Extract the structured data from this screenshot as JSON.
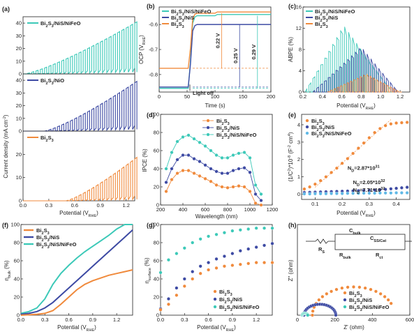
{
  "colors": {
    "orange": "#f08a3c",
    "blue": "#3d4aa3",
    "teal": "#3cc9b8",
    "lightblue": "#5fb8e6"
  },
  "chart_data": [
    {
      "id": "a",
      "panel": "(a)",
      "type": "line",
      "xlabel": "Potential (V",
      "xlabel_sub": "RHE",
      "xlabel_close": ")",
      "ylabel": "Current density (mA cm",
      "ylabel_sup": "-2",
      "ylabel_close": ")",
      "xlim": [
        0.0,
        1.3
      ],
      "x_ticks": [
        "0.0",
        "0.3",
        "0.6",
        "0.9",
        "1.2"
      ],
      "subplots": [
        {
          "name": "Bi2S3/NiS/NiFeO",
          "label": "Bi",
          "l_sub": "2",
          "l2": "S",
          "l_sub2": "3",
          "l3": "/NiS/NiFeO",
          "color": "teal",
          "ylim": [
            0,
            45
          ],
          "y_ticks": [
            "0",
            "10",
            "20",
            "30",
            "40"
          ],
          "peak_at_end": 40,
          "start": 0.02
        },
        {
          "name": "Bi2S3/NiO",
          "label": "Bi",
          "l_sub": "2",
          "l2": "S",
          "l_sub2": "3",
          "l3": "/NiO",
          "color": "blue",
          "ylim": [
            0,
            45
          ],
          "y_ticks": [
            "0",
            "10",
            "20",
            "30",
            "40"
          ],
          "peak_at_end": 38,
          "start": 0.25
        },
        {
          "name": "Bi2S3",
          "label": "Bi",
          "l_sub": "2",
          "l2": "S",
          "l_sub2": "3",
          "l3": "",
          "color": "orange",
          "ylim": [
            0,
            30
          ],
          "y_ticks": [
            "0",
            "10",
            "20"
          ],
          "peak_at_end": 18,
          "start": 0.5
        }
      ]
    },
    {
      "id": "b",
      "panel": "(b)",
      "type": "line",
      "xlabel": "Time (s)",
      "ylabel": "OCP (V",
      "ylabel_sub": "RHE",
      "ylabel_close": ")",
      "xlim": [
        0,
        200
      ],
      "ylim": [
        -0.87,
        -0.53
      ],
      "x_ticks": [
        "0",
        "50",
        "100",
        "150",
        "200"
      ],
      "y_ticks": [
        "-0.6",
        "-0.7",
        "-0.8"
      ],
      "annotation": "Light off",
      "deltas": [
        {
          "text": "0.22 V",
          "color": "orange"
        },
        {
          "text": "0.25 V",
          "color": "blue"
        },
        {
          "text": "0.29 V",
          "color": "teal"
        }
      ],
      "series": [
        {
          "name": "Bi2S3/NiS/NiFeO",
          "color": "teal",
          "dark": -0.855,
          "light": -0.565
        },
        {
          "name": "Bi2S3/NiS",
          "color": "blue",
          "dark": -0.85,
          "light": -0.6
        },
        {
          "name": "Bi2S3",
          "color": "orange",
          "dark": -0.775,
          "light": -0.555
        }
      ],
      "legend": [
        {
          "b": "Bi",
          "s1": "2",
          "m": "S",
          "s2": "3",
          "t": "/NiS/NiFeO"
        },
        {
          "b": "Bi",
          "s1": "2",
          "m": "S",
          "s2": "3",
          "t": "/NiS"
        },
        {
          "b": "Bi",
          "s1": "2",
          "m": "S",
          "s2": "3",
          "t": ""
        }
      ]
    },
    {
      "id": "c",
      "panel": "(c)",
      "type": "line",
      "xlabel": "Potential (V",
      "xlabel_sub": "RHE",
      "xlabel_close": ")",
      "ylabel": "ABPE (%)",
      "xlim": [
        0.2,
        1.3
      ],
      "ylim": [
        0,
        16
      ],
      "x_ticks": [
        "0.2",
        "0.4",
        "0.6",
        "0.8",
        "1.0",
        "1.2"
      ],
      "y_ticks": [
        "0",
        "4",
        "8",
        "12",
        "16"
      ],
      "series": [
        {
          "name": "Bi2S3/NiS/NiFeO",
          "color": "teal",
          "peak": 12.5,
          "peak_x": 0.62,
          "range": [
            0.22,
            1.12
          ]
        },
        {
          "name": "Bi2S3/NiS",
          "color": "blue",
          "peak": 8.5,
          "peak_x": 0.8,
          "range": [
            0.3,
            1.18
          ]
        },
        {
          "name": "Bi2S3",
          "color": "orange",
          "peak": 3.4,
          "peak_x": 0.85,
          "range": [
            0.45,
            1.2
          ]
        }
      ],
      "legend": [
        {
          "b": "Bi",
          "s1": "2",
          "m": "S",
          "s2": "3",
          "t": "/NiS/NiFeO"
        },
        {
          "b": "Bi",
          "s1": "2",
          "m": "S",
          "s2": "3",
          "t": "/NiS"
        },
        {
          "b": "Bi",
          "s1": "2",
          "m": "S",
          "s2": "3",
          "t": ""
        }
      ]
    },
    {
      "id": "d",
      "panel": "(d)",
      "type": "scatter",
      "xlabel": "Wavelength (nm)",
      "ylabel": "IPCE (%)",
      "xlim": [
        200,
        1200
      ],
      "ylim": [
        0,
        100
      ],
      "x_ticks": [
        "200",
        "400",
        "600",
        "800",
        "1000",
        "1200"
      ],
      "y_ticks": [
        "0",
        "20",
        "40",
        "60",
        "80",
        "100"
      ],
      "x": [
        250,
        300,
        350,
        400,
        450,
        500,
        550,
        600,
        650,
        700,
        750,
        800,
        850,
        900,
        950,
        1000,
        1050,
        1100
      ],
      "series": [
        {
          "name": "Bi2S3/NiS/NiFeO",
          "color": "teal",
          "values": [
            40,
            58,
            70,
            75,
            77,
            73,
            69,
            65,
            60,
            55,
            52,
            52,
            55,
            57,
            58,
            52,
            22,
            12
          ]
        },
        {
          "name": "Bi2S3/NiS",
          "color": "blue",
          "values": [
            25,
            40,
            50,
            55,
            55,
            51,
            48,
            44,
            40,
            37,
            35,
            35,
            38,
            40,
            41,
            36,
            12,
            5
          ]
        },
        {
          "name": "Bi2S3",
          "color": "orange",
          "values": [
            15,
            28,
            35,
            38,
            38,
            35,
            32,
            29,
            26,
            22,
            20,
            19,
            20,
            21,
            20,
            15,
            2,
            0
          ]
        }
      ],
      "legend": [
        {
          "b": "Bi",
          "s1": "2",
          "m": "S",
          "s2": "3",
          "t": ""
        },
        {
          "b": "Bi",
          "s1": "2",
          "m": "S",
          "s2": "3",
          "t": "/NiS"
        },
        {
          "b": "Bi",
          "s1": "2",
          "m": "S",
          "s2": "3",
          "t": "/NiS/NiFeO"
        }
      ]
    },
    {
      "id": "e",
      "panel": "(e)",
      "type": "scatter",
      "xlabel": "Potential (V",
      "xlabel_sub": "RHE",
      "xlabel_close": ")",
      "ylabel": "(1/C",
      "ylabel_sup": "2",
      "ylabel_rest": ")*10",
      "ylabel_sup2": "-8",
      "ylabel_rest2": " (F",
      "ylabel_sup3": "-2",
      "ylabel_rest3": " cm",
      "ylabel_sup4": "4",
      "ylabel_close": ")",
      "xlim": [
        0.05,
        0.45
      ],
      "ylim": [
        -0.3,
        4.6
      ],
      "x_ticks": [
        "0.1",
        "0.2",
        "0.3",
        "0.4"
      ],
      "y_ticks": [
        "0",
        "1",
        "2",
        "3",
        "4"
      ],
      "x": [
        0.06,
        0.08,
        0.1,
        0.12,
        0.14,
        0.16,
        0.18,
        0.2,
        0.22,
        0.24,
        0.26,
        0.28,
        0.3,
        0.32,
        0.34,
        0.36,
        0.38,
        0.4,
        0.42,
        0.44
      ],
      "series": [
        {
          "name": "Bi2S3",
          "color": "orange",
          "values": [
            0.3,
            0.42,
            0.58,
            0.78,
            1.0,
            1.25,
            1.5,
            1.78,
            2.05,
            2.35,
            2.65,
            2.95,
            3.25,
            3.55,
            3.78,
            3.95,
            4.05,
            4.1,
            4.12,
            4.14
          ]
        },
        {
          "name": "Bi2S3/NiS",
          "color": "blue",
          "values": [
            0.1,
            0.11,
            0.12,
            0.13,
            0.14,
            0.15,
            0.16,
            0.17,
            0.18,
            0.19,
            0.2,
            0.21,
            0.22,
            0.24,
            0.26,
            0.28,
            0.31,
            0.34,
            0.37,
            0.4
          ]
        },
        {
          "name": "Bi2S3/NiS/NiFeO",
          "color": "lightblue",
          "values": [
            0.02,
            0.02,
            0.03,
            0.03,
            0.03,
            0.04,
            0.04,
            0.04,
            0.05,
            0.05,
            0.05,
            0.06,
            0.06,
            0.06,
            0.07,
            0.07,
            0.07,
            0.08,
            0.08,
            0.08
          ]
        }
      ],
      "annotations": [
        {
          "b": "N",
          "s": "D",
          "t": "=2.87*10",
          "p": "31",
          "color": "orange"
        },
        {
          "b": "N",
          "s": "D",
          "t": "=2.05*10",
          "p": "32",
          "color": "blue"
        },
        {
          "b": "N",
          "s": "D",
          "t": "=7.71*10",
          "p": "32",
          "color": "lightblue"
        }
      ],
      "legend": [
        {
          "b": "Bi",
          "s1": "2",
          "m": "S",
          "s2": "3",
          "t": ""
        },
        {
          "b": "Bi",
          "s1": "2",
          "m": "S",
          "s2": "3",
          "t": "/NiS"
        },
        {
          "b": "Bi",
          "s1": "2",
          "m": "S",
          "s2": "3",
          "t": "/NiS/NiFeO"
        }
      ]
    },
    {
      "id": "f",
      "panel": "(f)",
      "type": "line",
      "xlabel": "Potential (V",
      "xlabel_sub": "RHE",
      "xlabel_close": ")",
      "ylabel": "η",
      "ylabel_sub": "bulk",
      "ylabel_close": " (%)",
      "xlim": [
        0,
        1.4
      ],
      "ylim": [
        0,
        100
      ],
      "x_ticks": [
        "0.0",
        "0.3",
        "0.6",
        "0.9",
        "1.2"
      ],
      "y_ticks": [
        "0",
        "20",
        "40",
        "60",
        "80",
        "100"
      ],
      "x": [
        0,
        0.1,
        0.2,
        0.3,
        0.4,
        0.5,
        0.6,
        0.7,
        0.8,
        0.9,
        1.0,
        1.1,
        1.2,
        1.3,
        1.4
      ],
      "series": [
        {
          "name": "Bi2S3/NiS/NiFeO",
          "color": "teal",
          "values": [
            2,
            4,
            8,
            18,
            34,
            46,
            55,
            63,
            70,
            76,
            82,
            88,
            95,
            100,
            100
          ]
        },
        {
          "name": "Bi2S3/NiS",
          "color": "blue",
          "values": [
            1,
            2,
            4,
            8,
            14,
            22,
            30,
            38,
            46,
            54,
            62,
            70,
            78,
            86,
            94
          ]
        },
        {
          "name": "Bi2S3",
          "color": "orange",
          "values": [
            0,
            0.5,
            1,
            2,
            5,
            12,
            20,
            28,
            34,
            38,
            41,
            44,
            46,
            48,
            50
          ]
        }
      ],
      "legend": [
        {
          "b": "Bi",
          "s1": "2",
          "m": "S",
          "s2": "3",
          "t": ""
        },
        {
          "b": "Bi",
          "s1": "2",
          "m": "S",
          "s2": "3",
          "t": "/NiS"
        },
        {
          "b": "Bi",
          "s1": "2",
          "m": "S",
          "s2": "3",
          "t": "/NiS/NiFeO"
        }
      ]
    },
    {
      "id": "g",
      "panel": "(g)",
      "type": "scatter",
      "xlabel": "Potential (V",
      "xlabel_sub": "RHE",
      "xlabel_close": ")",
      "ylabel": "η",
      "ylabel_sub": "surface",
      "ylabel_close": " (%)",
      "xlim": [
        0,
        1.4
      ],
      "ylim": [
        0,
        100
      ],
      "x_ticks": [
        "0.0",
        "0.3",
        "0.6",
        "0.9",
        "1.2"
      ],
      "y_ticks": [
        "0",
        "20",
        "40",
        "60",
        "80",
        "100"
      ],
      "x": [
        0.0,
        0.1,
        0.2,
        0.3,
        0.4,
        0.5,
        0.6,
        0.7,
        0.8,
        0.9,
        1.0,
        1.1,
        1.2,
        1.3,
        1.4
      ],
      "series": [
        {
          "name": "Bi2S3/NiS/NiFeO",
          "color": "teal",
          "values": [
            47,
            61,
            68,
            74,
            80,
            84,
            87,
            89,
            91,
            93,
            94,
            95,
            96,
            96,
            96
          ]
        },
        {
          "name": "Bi2S3/NiS",
          "color": "blue",
          "values": [
            7,
            18,
            30,
            40,
            48,
            54,
            58,
            62,
            65,
            68,
            71,
            73,
            75,
            77,
            79
          ]
        },
        {
          "name": "Bi2S3",
          "color": "orange",
          "values": [
            6,
            12,
            22,
            32,
            40,
            46,
            50,
            52,
            54,
            55,
            56,
            57,
            58,
            58,
            58
          ]
        }
      ],
      "legend": [
        {
          "b": "Bi",
          "s1": "2",
          "m": "S",
          "s2": "3",
          "t": ""
        },
        {
          "b": "Bi",
          "s1": "2",
          "m": "S",
          "s2": "3",
          "t": "/NiS"
        },
        {
          "b": "Bi",
          "s1": "2",
          "m": "S",
          "s2": "3",
          "t": "/NiS/NiFeO"
        }
      ]
    },
    {
      "id": "h",
      "panel": "(h)",
      "type": "scatter",
      "xlabel": "Z' (ohm)",
      "ylabel": "Z'' (ohm)",
      "xlim": [
        0,
        600
      ],
      "ylim": [
        0,
        600
      ],
      "x_ticks": [
        "0",
        "200",
        "400",
        "600"
      ],
      "y_ticks": [],
      "series": [
        {
          "name": "Bi2S3",
          "color": "orange",
          "center": 300,
          "radius": 220,
          "start": 50,
          "end": 510
        },
        {
          "name": "Bi2S3/NiS",
          "color": "blue",
          "center": 120,
          "radius": 85,
          "start": 35,
          "end": 205
        },
        {
          "name": "Bi2S3/NiS/NiFeO",
          "color": "teal",
          "center": 40,
          "radius": 15,
          "start": 25,
          "end": 55
        }
      ],
      "circuit": {
        "rs": "R",
        "rs_sub": "S",
        "cbulk": "C",
        "cbulk_sub": "bulk",
        "css": "C",
        "css_sub": "SS/Cat",
        "rbulk": "R",
        "rbulk_sub": "bulk",
        "rct": "R",
        "rct_sub": "ct"
      },
      "legend": [
        {
          "b": "Bi",
          "s1": "2",
          "m": "S",
          "s2": "3",
          "t": ""
        },
        {
          "b": "Bi",
          "s1": "2",
          "m": "S",
          "s2": "3",
          "t": "/NiS"
        },
        {
          "b": "Bi",
          "s1": "2",
          "m": "S",
          "s2": "3",
          "t": "/NiS/NiFeO"
        }
      ]
    }
  ]
}
